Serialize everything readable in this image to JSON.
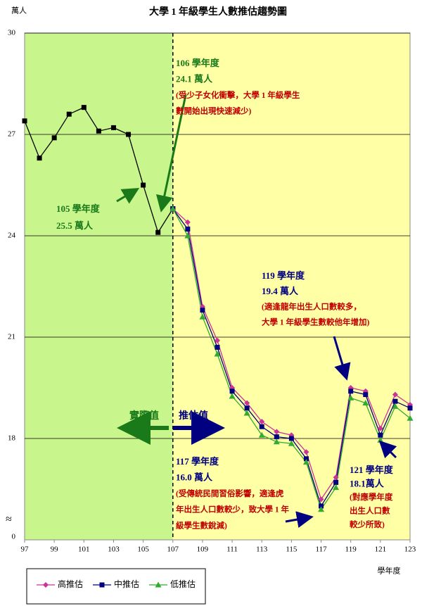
{
  "chart_data": {
    "type": "line",
    "title": "大學 1 年級學生人數推估趨勢圖",
    "y_label": "萬人",
    "x_label": "學年度",
    "xlim": [
      97,
      123
    ],
    "xticks": [
      97,
      99,
      101,
      103,
      105,
      107,
      109,
      111,
      113,
      115,
      117,
      119,
      121,
      123
    ],
    "ylim": [
      15,
      30
    ],
    "yticks": [
      18,
      21,
      24,
      27,
      30
    ],
    "y_break": {
      "label": "0",
      "symbol": "≈"
    },
    "grid": true,
    "divider_x": 107,
    "regions": [
      {
        "from": 97,
        "to": 107,
        "color": "#c8f58c"
      },
      {
        "from": 107,
        "to": 123,
        "color": "#ffffa6"
      }
    ],
    "legend": "bottom-left",
    "series": [
      {
        "color": "#000000",
        "marker": "square",
        "x": [
          97,
          98,
          99,
          100,
          101,
          102,
          103,
          104,
          105,
          106,
          107
        ],
        "values": [
          27.4,
          26.3,
          26.9,
          27.6,
          27.8,
          27.1,
          27.2,
          27.0,
          25.5,
          24.1,
          24.8
        ]
      },
      {
        "name": "高推估",
        "color": "#cc3399",
        "marker": "diamond",
        "x": [
          107,
          108,
          109,
          110,
          111,
          112,
          113,
          114,
          115,
          116,
          117,
          118,
          119,
          120,
          121,
          122,
          123
        ],
        "values": [
          24.8,
          24.4,
          21.9,
          20.9,
          19.5,
          19.05,
          18.5,
          18.2,
          18.1,
          17.6,
          16.2,
          16.85,
          19.5,
          19.4,
          18.3,
          19.3,
          19.0
        ]
      },
      {
        "name": "中推估",
        "color": "#000080",
        "marker": "square",
        "x": [
          107,
          108,
          109,
          110,
          111,
          112,
          113,
          114,
          115,
          116,
          117,
          118,
          119,
          120,
          121,
          122,
          123
        ],
        "values": [
          24.8,
          24.2,
          21.8,
          20.7,
          19.4,
          18.9,
          18.35,
          18.05,
          18.0,
          17.4,
          16.0,
          16.7,
          19.4,
          19.3,
          18.1,
          19.1,
          18.9
        ]
      },
      {
        "name": "低推估",
        "color": "#33aa33",
        "marker": "triangle",
        "x": [
          107,
          108,
          109,
          110,
          111,
          112,
          113,
          114,
          115,
          116,
          117,
          118,
          119,
          120,
          121,
          122,
          123
        ],
        "values": [
          24.8,
          24.0,
          21.6,
          20.5,
          19.25,
          18.75,
          18.1,
          17.9,
          17.85,
          17.3,
          15.9,
          16.55,
          19.2,
          19.05,
          17.95,
          18.95,
          18.6
        ]
      }
    ],
    "phase_labels": [
      {
        "text": "實際值",
        "color": "#1a7a1a"
      },
      {
        "text": "推估值",
        "color": "#000080"
      }
    ],
    "annotations": [
      {
        "lines": [
          {
            "text": "106 學年度",
            "color": "#1a7a1a"
          },
          {
            "text": "24.1 萬人",
            "color": "#1a7a1a"
          },
          {
            "text": "(受少子女化衝擊，大學 1 年級學生",
            "color": "#c00000"
          },
          {
            "text": "數開始出現快速減少)",
            "color": "#c00000"
          }
        ]
      },
      {
        "lines": [
          {
            "text": "105 學年度",
            "color": "#1a7a1a"
          },
          {
            "text": "25.5 萬人",
            "color": "#1a7a1a"
          }
        ]
      },
      {
        "lines": [
          {
            "text": "119 學年度",
            "color": "#000080"
          },
          {
            "text": "19.4 萬人",
            "color": "#000080"
          },
          {
            "text": "(適逢龍年出生人口數較多，",
            "color": "#c00000"
          },
          {
            "text": "大學 1 年級學生數較他年增加)",
            "color": "#c00000"
          }
        ]
      },
      {
        "lines": [
          {
            "text": "117 學年度",
            "color": "#000080"
          },
          {
            "text": "16.0 萬人",
            "color": "#000080"
          },
          {
            "text": "(受傳統民間習俗影響，適逢虎",
            "color": "#c00000"
          },
          {
            "text": "年出生人口數較少，致大學 1 年",
            "color": "#c00000"
          },
          {
            "text": "級學生數銳減)",
            "color": "#c00000"
          }
        ]
      },
      {
        "lines": [
          {
            "text": "121 學年度",
            "color": "#000080"
          },
          {
            "text": "18.1萬人",
            "color": "#000080"
          },
          {
            "text": "(對應學年度",
            "color": "#c00000"
          },
          {
            "text": "出生人口數",
            "color": "#c00000"
          },
          {
            "text": "較少所致)",
            "color": "#c00000"
          }
        ]
      }
    ]
  }
}
